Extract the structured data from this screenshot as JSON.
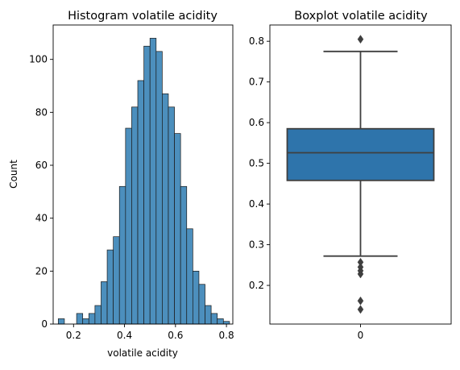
{
  "chart_data": [
    {
      "type": "histogram",
      "title": "Histogram volatile acidity",
      "xlabel": "volatile acidity",
      "ylabel": "Count",
      "xlim": [
        0.12,
        0.825
      ],
      "ylim": [
        0,
        113
      ],
      "xticks": [
        "0.2",
        "0.4",
        "0.6",
        "0.8"
      ],
      "yticks": [
        "0",
        "20",
        "40",
        "60",
        "80",
        "100"
      ],
      "bar_color": "#4c8fbd",
      "bins": [
        {
          "x0": 0.14,
          "x1": 0.164,
          "count": 2
        },
        {
          "x0": 0.164,
          "x1": 0.188,
          "count": 0
        },
        {
          "x0": 0.188,
          "x1": 0.212,
          "count": 0
        },
        {
          "x0": 0.212,
          "x1": 0.236,
          "count": 4
        },
        {
          "x0": 0.236,
          "x1": 0.26,
          "count": 2
        },
        {
          "x0": 0.26,
          "x1": 0.284,
          "count": 4
        },
        {
          "x0": 0.284,
          "x1": 0.308,
          "count": 7
        },
        {
          "x0": 0.308,
          "x1": 0.332,
          "count": 16
        },
        {
          "x0": 0.332,
          "x1": 0.356,
          "count": 28
        },
        {
          "x0": 0.356,
          "x1": 0.38,
          "count": 33
        },
        {
          "x0": 0.38,
          "x1": 0.404,
          "count": 52
        },
        {
          "x0": 0.404,
          "x1": 0.428,
          "count": 74
        },
        {
          "x0": 0.428,
          "x1": 0.452,
          "count": 82
        },
        {
          "x0": 0.452,
          "x1": 0.476,
          "count": 92
        },
        {
          "x0": 0.476,
          "x1": 0.5,
          "count": 105
        },
        {
          "x0": 0.5,
          "x1": 0.524,
          "count": 108
        },
        {
          "x0": 0.524,
          "x1": 0.548,
          "count": 103
        },
        {
          "x0": 0.548,
          "x1": 0.572,
          "count": 87
        },
        {
          "x0": 0.572,
          "x1": 0.596,
          "count": 82
        },
        {
          "x0": 0.596,
          "x1": 0.62,
          "count": 72
        },
        {
          "x0": 0.62,
          "x1": 0.644,
          "count": 52
        },
        {
          "x0": 0.644,
          "x1": 0.668,
          "count": 36
        },
        {
          "x0": 0.668,
          "x1": 0.692,
          "count": 20
        },
        {
          "x0": 0.692,
          "x1": 0.716,
          "count": 15
        },
        {
          "x0": 0.716,
          "x1": 0.74,
          "count": 7
        },
        {
          "x0": 0.74,
          "x1": 0.764,
          "count": 4
        },
        {
          "x0": 0.764,
          "x1": 0.788,
          "count": 2
        },
        {
          "x0": 0.788,
          "x1": 0.812,
          "count": 1
        }
      ]
    },
    {
      "type": "boxplot",
      "title": "Boxplot volatile acidity",
      "xlabel": "",
      "ylabel": "",
      "ylim": [
        0.105,
        0.84
      ],
      "yticks": [
        "0.2",
        "0.3",
        "0.4",
        "0.5",
        "0.6",
        "0.7",
        "0.8"
      ],
      "xticks": [
        "0"
      ],
      "box_color": "#2e74ab",
      "line_color": "#3f3f3f",
      "stats": {
        "whisker_low": 0.272,
        "q1": 0.458,
        "median": 0.526,
        "q3": 0.585,
        "whisker_high": 0.775,
        "outliers": [
          0.805,
          0.257,
          0.245,
          0.236,
          0.228,
          0.162,
          0.141
        ]
      }
    }
  ]
}
